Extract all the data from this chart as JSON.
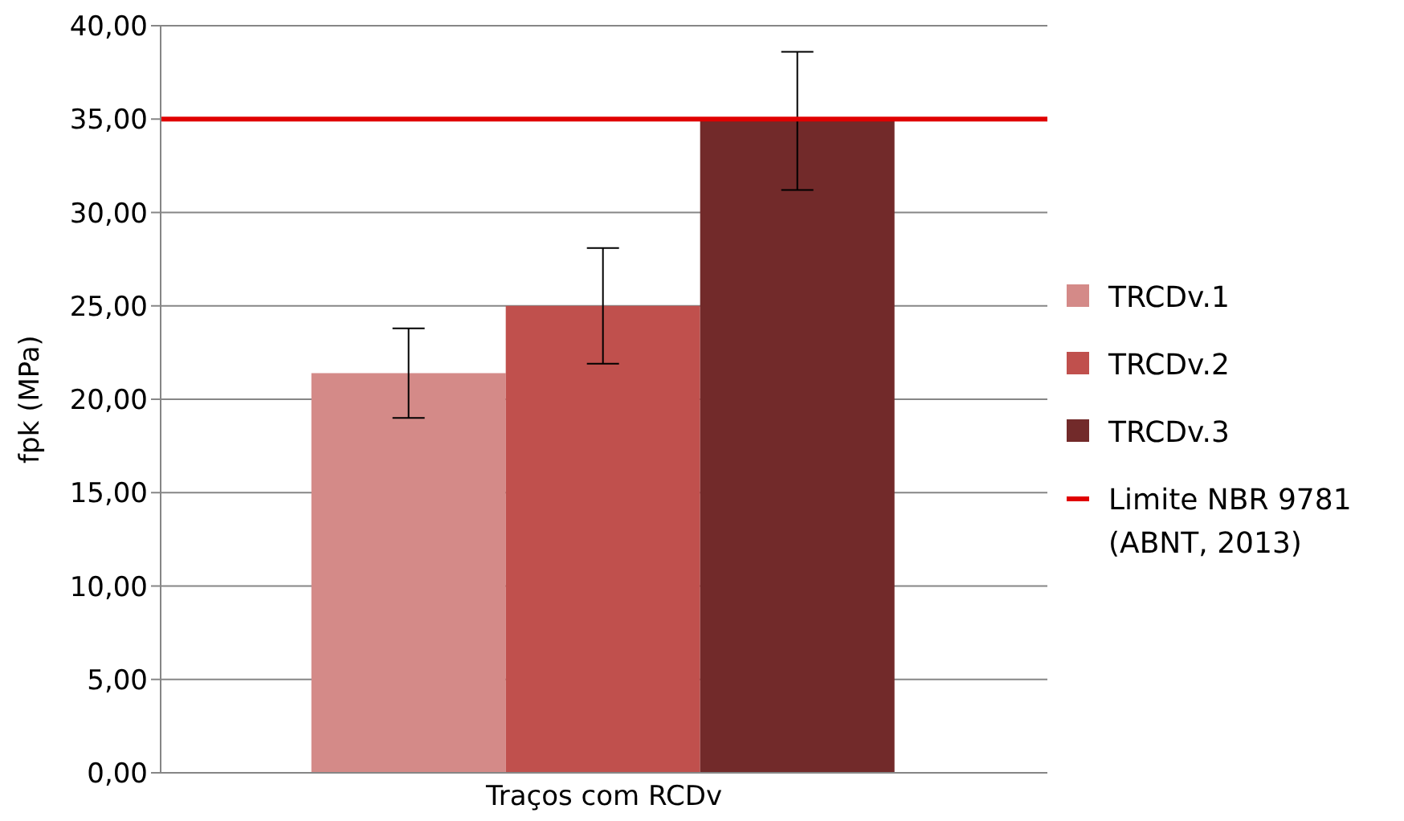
{
  "chart_data": {
    "type": "bar",
    "ylabel": "fpk (MPa)",
    "categories": [
      "Traços com RCDv"
    ],
    "series": [
      {
        "name": "TRCDv.1",
        "color": "#d48a88",
        "values": [
          21.4
        ],
        "errors": [
          2.4
        ]
      },
      {
        "name": "TRCDv.2",
        "color": "#c0504d",
        "values": [
          25.0
        ],
        "errors": [
          3.1
        ]
      },
      {
        "name": "TRCDv.3",
        "color": "#722a2a",
        "values": [
          34.9
        ],
        "errors": [
          3.7
        ]
      }
    ],
    "ylim": [
      0,
      40
    ],
    "yticks": [
      {
        "value": 0,
        "label": "0,00"
      },
      {
        "value": 5,
        "label": "5,00"
      },
      {
        "value": 10,
        "label": "10,00"
      },
      {
        "value": 15,
        "label": "15,00"
      },
      {
        "value": 20,
        "label": "20,00"
      },
      {
        "value": 25,
        "label": "25,00"
      },
      {
        "value": 30,
        "label": "30,00"
      },
      {
        "value": 35,
        "label": "35,00"
      },
      {
        "value": 40,
        "label": "40,00"
      }
    ],
    "ref_lines": [
      {
        "axis": "y",
        "value": 35,
        "label": "Limite NBR 9781 (ABNT, 2013)",
        "color": "#e00000"
      }
    ],
    "grid": "y",
    "legend": "right"
  }
}
